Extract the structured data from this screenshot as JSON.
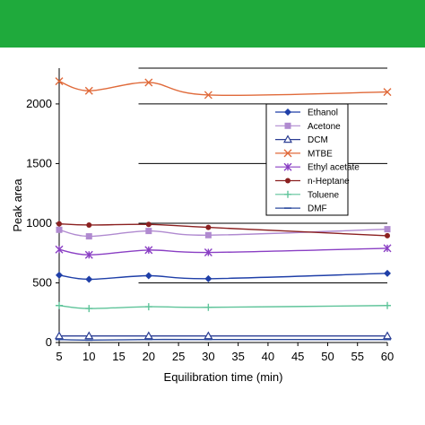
{
  "header": {
    "bar_color": "#1faa3c"
  },
  "chart_data": {
    "type": "line",
    "xlabel": "Equilibration time (min)",
    "ylabel": "Peak area",
    "xlim": [
      5,
      60
    ],
    "ylim": [
      0,
      2300
    ],
    "xticks": [
      5,
      10,
      15,
      20,
      25,
      30,
      35,
      40,
      45,
      50,
      55,
      60
    ],
    "yticks": [
      0,
      500,
      1000,
      1500,
      2000
    ],
    "grid": "horizontal lines from x=18 to x=60",
    "legend_position": "right",
    "series": [
      {
        "name": "Ethanol",
        "color": "#1f3fa8",
        "marker": "diamond",
        "x": [
          5,
          10,
          20,
          30,
          60
        ],
        "y": [
          565,
          530,
          560,
          535,
          580
        ]
      },
      {
        "name": "Acetone",
        "color": "#b08ad0",
        "marker": "square",
        "x": [
          5,
          10,
          20,
          30,
          60
        ],
        "y": [
          945,
          890,
          935,
          900,
          950
        ]
      },
      {
        "name": "DCM",
        "color": "#2c3e94",
        "marker": "triangle",
        "x": [
          5,
          10,
          20,
          30,
          60
        ],
        "y": [
          55,
          55,
          55,
          55,
          55
        ]
      },
      {
        "name": "MTBE",
        "color": "#e06a3a",
        "marker": "x",
        "x": [
          5,
          10,
          20,
          30,
          60
        ],
        "y": [
          2190,
          2110,
          2180,
          2075,
          2100
        ]
      },
      {
        "name": "Ethyl acetate",
        "color": "#8a3fc4",
        "marker": "star",
        "x": [
          5,
          10,
          20,
          30,
          60
        ],
        "y": [
          780,
          735,
          775,
          755,
          790
        ]
      },
      {
        "name": "n-Heptane",
        "color": "#8b2020",
        "marker": "circle",
        "x": [
          5,
          10,
          20,
          30,
          60
        ],
        "y": [
          995,
          985,
          990,
          965,
          895
        ]
      },
      {
        "name": "Toluene",
        "color": "#5fc49a",
        "marker": "plus",
        "x": [
          5,
          10,
          20,
          30,
          60
        ],
        "y": [
          310,
          285,
          300,
          295,
          310
        ]
      },
      {
        "name": "DMF",
        "color": "#2b4a9e",
        "marker": "dash",
        "x": [
          5,
          10,
          20,
          30,
          60
        ],
        "y": [
          25,
          20,
          25,
          25,
          25
        ]
      }
    ]
  }
}
